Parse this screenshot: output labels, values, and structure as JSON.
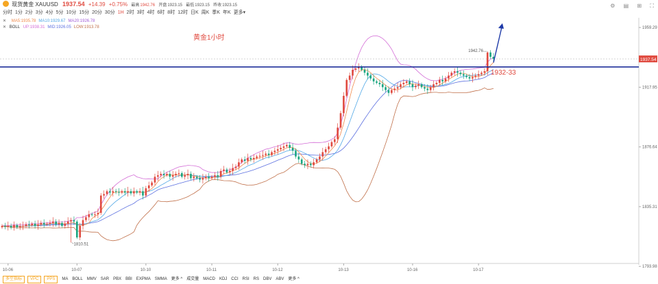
{
  "header": {
    "name": "现货黄金",
    "symbol": "XAUUSD",
    "price": "1937.54",
    "change": "+14.39",
    "change_pct": "+0.75%",
    "high_label": "最高",
    "high": "1942.76",
    "open_label": "开盘",
    "open": "1923.15",
    "low_label": "最低",
    "low": "1923.15",
    "prev_label": "昨收",
    "prev": "1923.15"
  },
  "timeframes": [
    "分时",
    "1分",
    "2分",
    "3分",
    "4分",
    "5分",
    "10分",
    "15分",
    "20分",
    "30分",
    "1H",
    "2时",
    "3时",
    "4时",
    "6时",
    "8时",
    "12时",
    "日K",
    "周K",
    "季K",
    "年K",
    "更多▾"
  ],
  "active_timeframe": "1H",
  "ma_row": {
    "label": "",
    "items": [
      {
        "text": "MA5:1935.78",
        "color": "#f08a4b"
      },
      {
        "text": "MA10:1929.67",
        "color": "#4fa7e6"
      },
      {
        "text": "MA20:1926.78",
        "color": "#a25cd6"
      }
    ]
  },
  "boll_row": {
    "label": "BOLL",
    "items": [
      {
        "text": "UP:1938.31",
        "color": "#d36bd6"
      },
      {
        "text": "MID:1926.05",
        "color": "#5b6fe0"
      },
      {
        "text": "LOW:1913.78",
        "color": "#c0704a"
      }
    ]
  },
  "chip_buttons": [
    "多空指标",
    "VPC",
    "PPS"
  ],
  "indicators": [
    "MA",
    "BOLL",
    "MMV",
    "SAR",
    "PBX",
    "BBI",
    "EXPMA",
    "SMMA",
    "更多 ^",
    "成交量",
    "MACD",
    "KDJ",
    "CCI",
    "RSI",
    "RS",
    "DBV",
    "ABV",
    "更多 ^"
  ],
  "chart_data": {
    "type": "candlestick",
    "title": "黄金1小时",
    "ylim": [
      1795.98,
      1966.0
    ],
    "y_ticks": [
      "1959.29",
      "1917.95",
      "1876.64",
      "1835.31",
      "1793.98"
    ],
    "y_tick_values": [
      1959.29,
      1917.95,
      1876.64,
      1835.31,
      1793.98
    ],
    "x_tick_labels": [
      "10-06",
      "10-07",
      "10-10",
      "10-11",
      "10-12",
      "10-13",
      "10-16",
      "10-17"
    ],
    "current_price_label": "1937.54",
    "current_price": 1937.54,
    "resistance_level": 1932.0,
    "annotation_text": "1932-33",
    "high_label": "1942.76",
    "low_label": "1810.51",
    "colors": {
      "up": "#e04a3f",
      "down": "#1aa680",
      "ma5": "#f08a4b",
      "ma10": "#4fa7e6",
      "ma20": "#a25cd6",
      "up_band": "#d36bd6",
      "mid_band": "#5b6fe0",
      "low_band": "#c0704a",
      "level": "#1e2f9a",
      "arrow": "#1e3aa8"
    },
    "closes": [
      1822,
      1821.5,
      1822,
      1821,
      1822.5,
      1821,
      1821.8,
      1822,
      1823,
      1822.5,
      1823.5,
      1822,
      1823,
      1824,
      1823,
      1823.5,
      1824,
      1825,
      1823,
      1824,
      1822,
      1823.5,
      1825,
      1826,
      1825,
      1814,
      1822,
      1826,
      1828,
      1830,
      1829.5,
      1830,
      1831,
      1843,
      1844,
      1846,
      1845,
      1846,
      1845.5,
      1845,
      1846,
      1845,
      1846,
      1844.5,
      1846,
      1845,
      1846,
      1843,
      1848,
      1850,
      1852,
      1856,
      1857,
      1858,
      1857,
      1858,
      1856,
      1857,
      1858,
      1858.5,
      1856,
      1857,
      1858,
      1855,
      1856,
      1855,
      1854,
      1855,
      1856,
      1855,
      1856,
      1857,
      1856,
      1860,
      1861,
      1859,
      1860,
      1862,
      1863,
      1866,
      1868,
      1867,
      1869,
      1868,
      1869,
      1870,
      1870.5,
      1871,
      1872,
      1871,
      1873,
      1874,
      1875,
      1876,
      1877,
      1878,
      1876,
      1874,
      1870,
      1868,
      1865,
      1864,
      1865,
      1864,
      1866,
      1868,
      1870,
      1873,
      1875,
      1877,
      1880,
      1882,
      1890,
      1900,
      1912,
      1923,
      1926,
      1930,
      1931,
      1932,
      1930,
      1928,
      1926,
      1924,
      1922,
      1921,
      1920,
      1918,
      1916,
      1914,
      1916,
      1917,
      1918,
      1920,
      1921,
      1922,
      1920,
      1918,
      1919,
      1920,
      1918,
      1917,
      1916,
      1918,
      1920,
      1921,
      1923,
      1922,
      1924,
      1926,
      1928,
      1929,
      1928,
      1927,
      1926,
      1925,
      1924,
      1925,
      1926,
      1927,
      1928,
      1929,
      1942,
      1939,
      1937.54
    ]
  }
}
